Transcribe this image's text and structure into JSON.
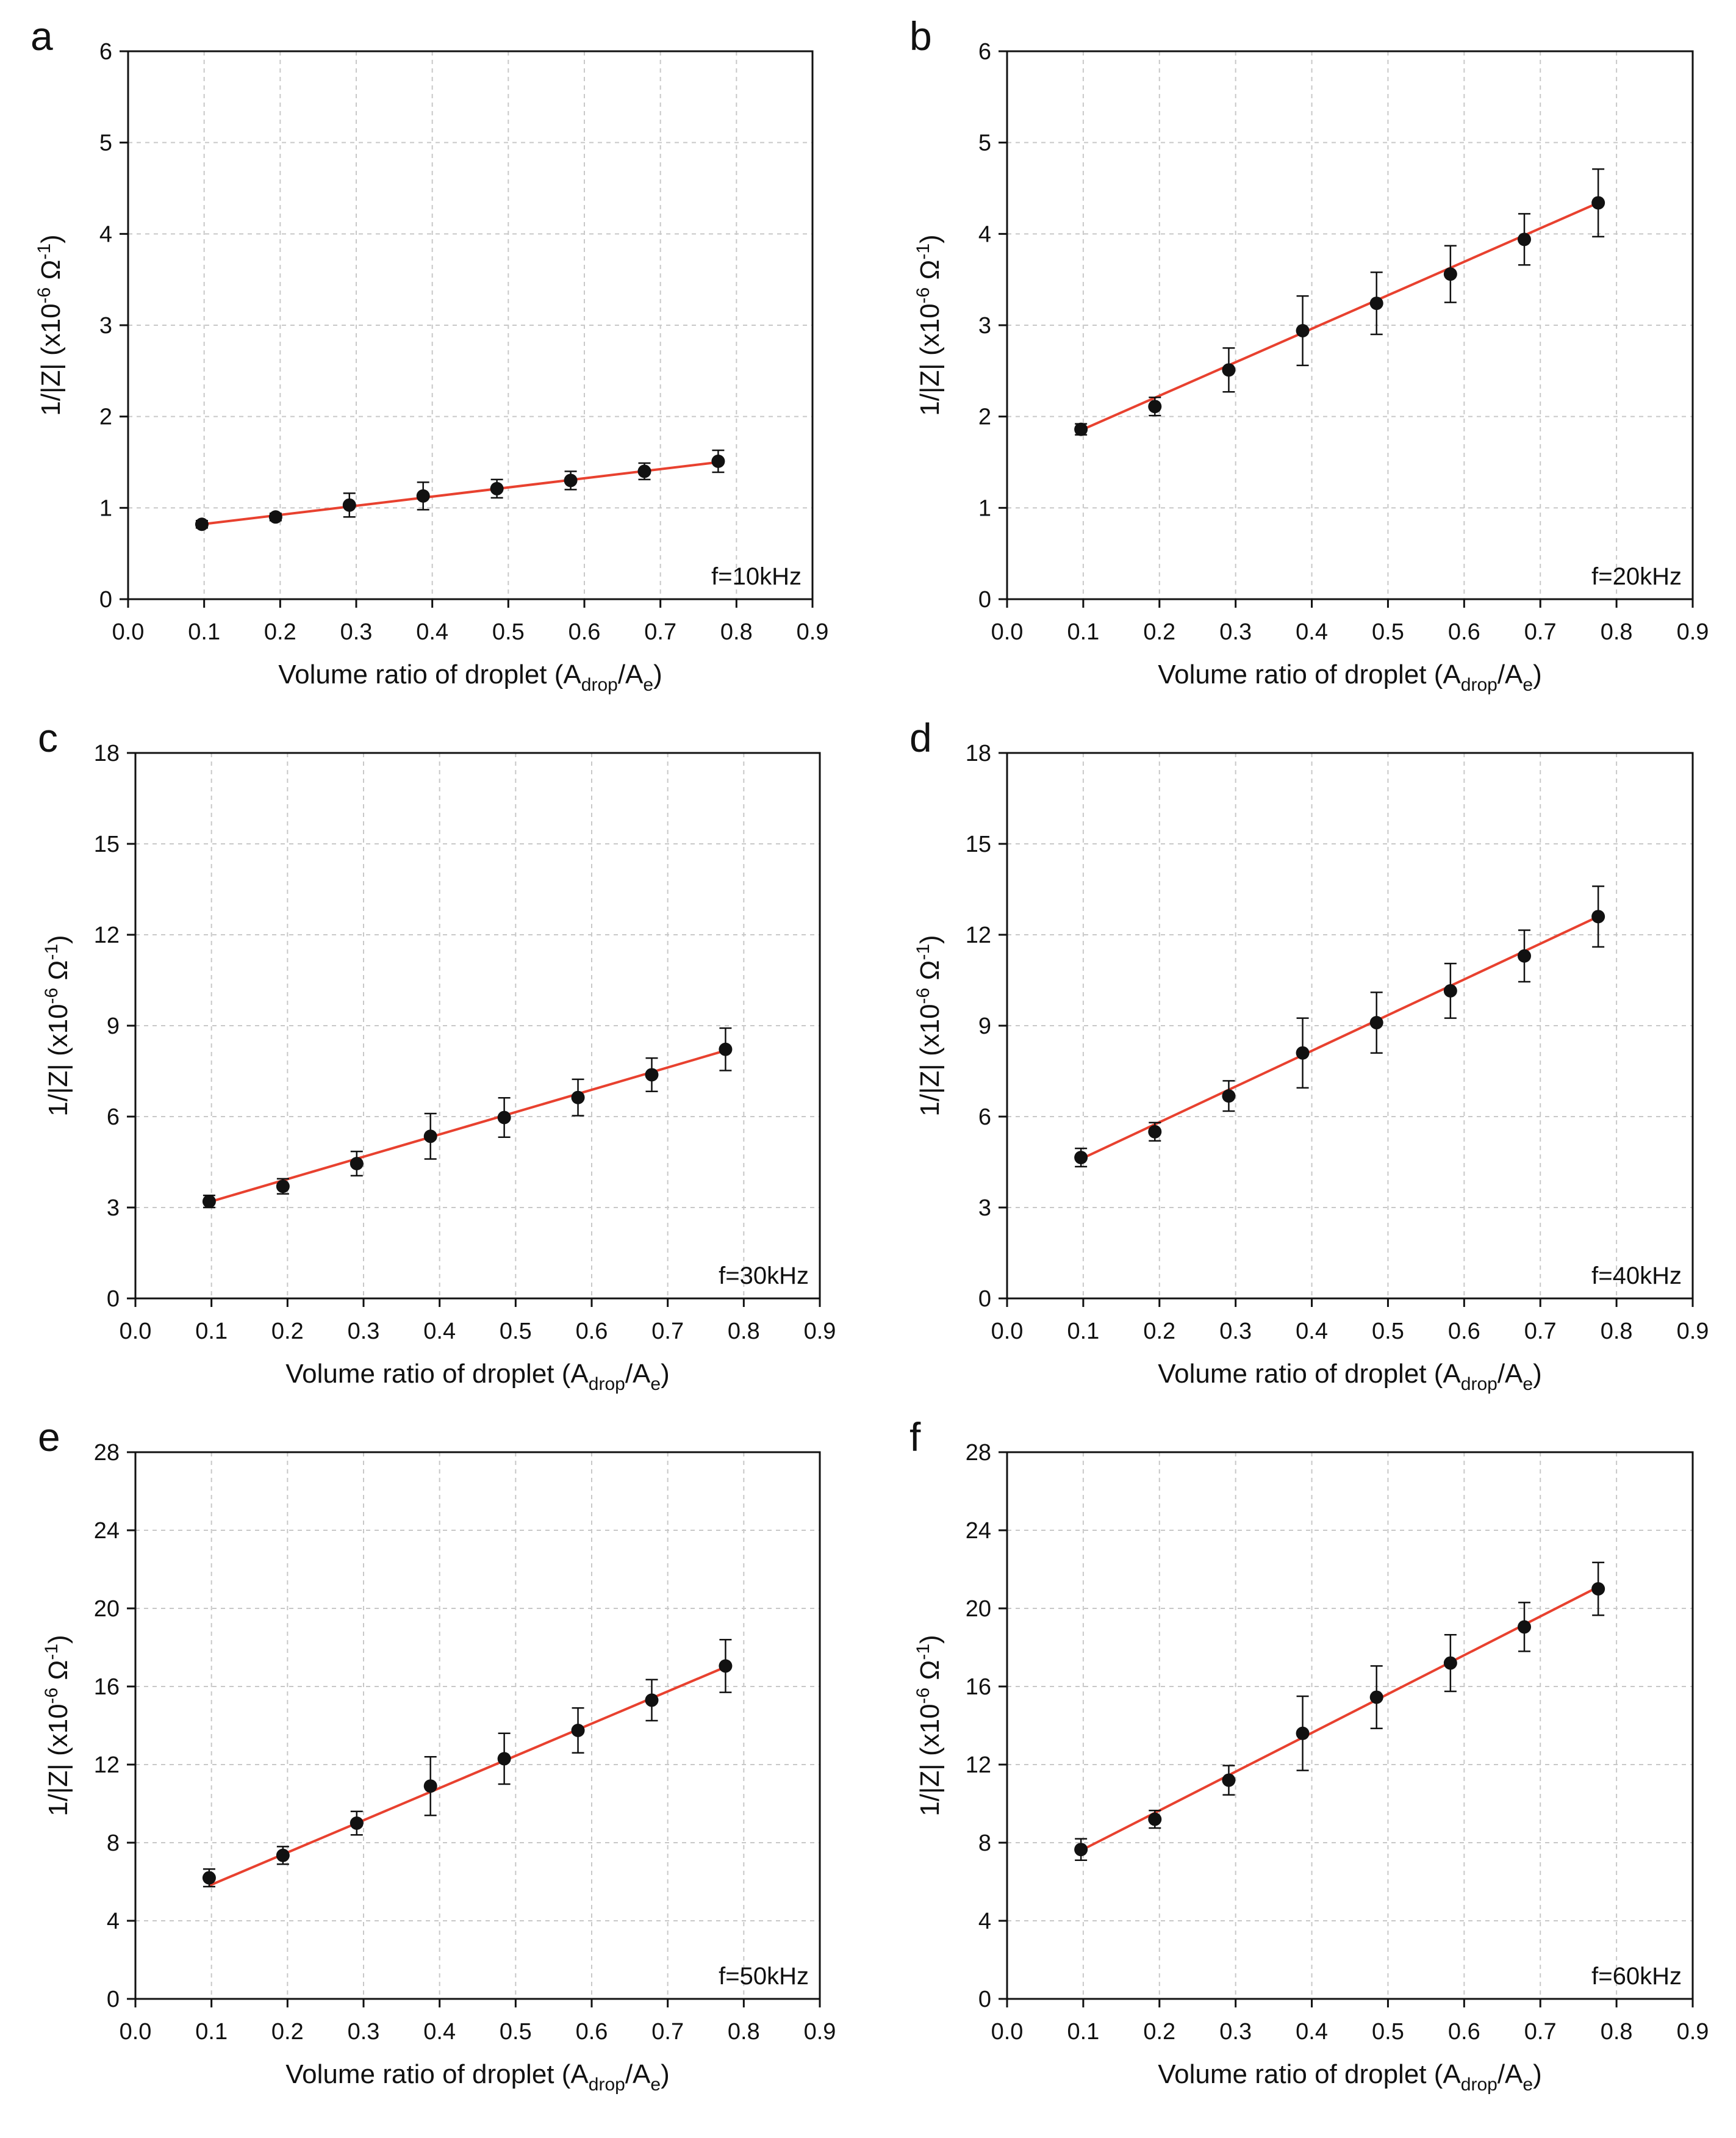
{
  "chart_data": [
    {
      "panel": "a",
      "type": "scatter",
      "annotation": "f=10kHz",
      "xlabel": "Volume ratio of droplet (A_drop/A_e)",
      "ylabel": "1/|Z| (x10^-6 Ω^-1)",
      "xlim": [
        0.0,
        0.9
      ],
      "ylim": [
        0,
        6
      ],
      "xticks": [
        0.0,
        0.1,
        0.2,
        0.3,
        0.4,
        0.5,
        0.6,
        0.7,
        0.8,
        0.9
      ],
      "yticks": [
        0,
        1,
        2,
        3,
        4,
        5,
        6
      ],
      "grid": true,
      "x": [
        0.097,
        0.194,
        0.291,
        0.388,
        0.485,
        0.582,
        0.679,
        0.776
      ],
      "y": [
        0.82,
        0.9,
        1.03,
        1.13,
        1.21,
        1.3,
        1.4,
        1.51
      ],
      "yerr": [
        0.04,
        0.04,
        0.13,
        0.15,
        0.1,
        0.1,
        0.09,
        0.12
      ],
      "fit": {
        "x": [
          0.097,
          0.776
        ],
        "y": [
          0.82,
          1.5
        ]
      }
    },
    {
      "panel": "b",
      "type": "scatter",
      "annotation": "f=20kHz",
      "xlabel": "Volume ratio of droplet (A_drop/A_e)",
      "ylabel": "1/|Z| (x10^-6 Ω^-1)",
      "xlim": [
        0.0,
        0.9
      ],
      "ylim": [
        0,
        6
      ],
      "xticks": [
        0.0,
        0.1,
        0.2,
        0.3,
        0.4,
        0.5,
        0.6,
        0.7,
        0.8,
        0.9
      ],
      "yticks": [
        0,
        1,
        2,
        3,
        4,
        5,
        6
      ],
      "grid": true,
      "x": [
        0.097,
        0.194,
        0.291,
        0.388,
        0.485,
        0.582,
        0.679,
        0.776
      ],
      "y": [
        1.86,
        2.11,
        2.51,
        2.94,
        3.24,
        3.56,
        3.94,
        4.34
      ],
      "yerr": [
        0.06,
        0.1,
        0.24,
        0.38,
        0.34,
        0.31,
        0.28,
        0.37
      ],
      "fit": {
        "x": [
          0.097,
          0.776
        ],
        "y": [
          1.85,
          4.34
        ]
      }
    },
    {
      "panel": "c",
      "type": "scatter",
      "annotation": "f=30kHz",
      "xlabel": "Volume ratio of droplet (A_drop/A_e)",
      "ylabel": "1/|Z| (x10^-6 Ω^-1)",
      "xlim": [
        0.0,
        0.9
      ],
      "ylim": [
        0,
        18
      ],
      "xticks": [
        0.0,
        0.1,
        0.2,
        0.3,
        0.4,
        0.5,
        0.6,
        0.7,
        0.8,
        0.9
      ],
      "yticks": [
        0,
        3,
        6,
        9,
        12,
        15,
        18
      ],
      "grid": true,
      "x": [
        0.097,
        0.194,
        0.291,
        0.388,
        0.485,
        0.582,
        0.679,
        0.776
      ],
      "y": [
        3.2,
        3.7,
        4.45,
        5.35,
        5.97,
        6.63,
        7.38,
        8.22
      ],
      "yerr": [
        0.2,
        0.25,
        0.4,
        0.75,
        0.65,
        0.6,
        0.55,
        0.7
      ],
      "fit": {
        "x": [
          0.097,
          0.776
        ],
        "y": [
          3.18,
          8.18
        ]
      }
    },
    {
      "panel": "d",
      "type": "scatter",
      "annotation": "f=40kHz",
      "xlabel": "Volume ratio of droplet (A_drop/A_e)",
      "ylabel": "1/|Z| (x10^-6 Ω^-1)",
      "xlim": [
        0.0,
        0.9
      ],
      "ylim": [
        0,
        18
      ],
      "xticks": [
        0.0,
        0.1,
        0.2,
        0.3,
        0.4,
        0.5,
        0.6,
        0.7,
        0.8,
        0.9
      ],
      "yticks": [
        0,
        3,
        6,
        9,
        12,
        15,
        18
      ],
      "grid": true,
      "x": [
        0.097,
        0.194,
        0.291,
        0.388,
        0.485,
        0.582,
        0.679,
        0.776
      ],
      "y": [
        4.65,
        5.5,
        6.68,
        8.1,
        9.1,
        10.15,
        11.3,
        12.6
      ],
      "yerr": [
        0.3,
        0.3,
        0.5,
        1.15,
        1.0,
        0.9,
        0.85,
        1.0
      ],
      "fit": {
        "x": [
          0.097,
          0.776
        ],
        "y": [
          4.6,
          12.6
        ]
      }
    },
    {
      "panel": "e",
      "type": "scatter",
      "annotation": "f=50kHz",
      "xlabel": "Volume ratio of droplet (A_drop/A_e)",
      "ylabel": "1/|Z| (x10^-6 Ω^-1)",
      "xlim": [
        0.0,
        0.9
      ],
      "ylim": [
        0,
        28
      ],
      "xticks": [
        0.0,
        0.1,
        0.2,
        0.3,
        0.4,
        0.5,
        0.6,
        0.7,
        0.8,
        0.9
      ],
      "yticks": [
        0,
        4,
        8,
        12,
        16,
        20,
        24,
        28
      ],
      "grid": true,
      "x": [
        0.097,
        0.194,
        0.291,
        0.388,
        0.485,
        0.582,
        0.679,
        0.776
      ],
      "y": [
        6.2,
        7.35,
        9.0,
        10.9,
        12.3,
        13.75,
        15.3,
        17.05
      ],
      "yerr": [
        0.45,
        0.45,
        0.6,
        1.5,
        1.3,
        1.15,
        1.05,
        1.35
      ],
      "fit": {
        "x": [
          0.097,
          0.776
        ],
        "y": [
          5.8,
          17.0
        ]
      }
    },
    {
      "panel": "f",
      "type": "scatter",
      "annotation": "f=60kHz",
      "xlabel": "Volume ratio of droplet (A_drop/A_e)",
      "ylabel": "1/|Z| (x10^-6 Ω^-1)",
      "xlim": [
        0.0,
        0.9
      ],
      "ylim": [
        0,
        28
      ],
      "xticks": [
        0.0,
        0.1,
        0.2,
        0.3,
        0.4,
        0.5,
        0.6,
        0.7,
        0.8,
        0.9
      ],
      "yticks": [
        0,
        4,
        8,
        12,
        16,
        20,
        24,
        28
      ],
      "grid": true,
      "x": [
        0.097,
        0.194,
        0.291,
        0.388,
        0.485,
        0.582,
        0.679,
        0.776
      ],
      "y": [
        7.65,
        9.2,
        11.2,
        13.6,
        15.45,
        17.2,
        19.05,
        21.0
      ],
      "yerr": [
        0.55,
        0.45,
        0.75,
        1.9,
        1.6,
        1.45,
        1.25,
        1.35
      ],
      "fit": {
        "x": [
          0.097,
          0.776
        ],
        "y": [
          7.6,
          21.1
        ]
      }
    }
  ],
  "colors": {
    "fit_line": "#e8412f",
    "markers": "#111111",
    "grid": "#c8c8c8"
  },
  "axis_text": {
    "xlabel_main": "Volume ratio of droplet",
    "xlabel_A": "A",
    "xlabel_sub1": "drop",
    "xlabel_slash": "/A",
    "xlabel_sub2": "e",
    "ylabel_main": "1/|Z| (x10",
    "ylabel_exp1": "-6",
    "ylabel_omega": " Ω",
    "ylabel_exp2": "-1",
    "ylabel_close": ")"
  }
}
